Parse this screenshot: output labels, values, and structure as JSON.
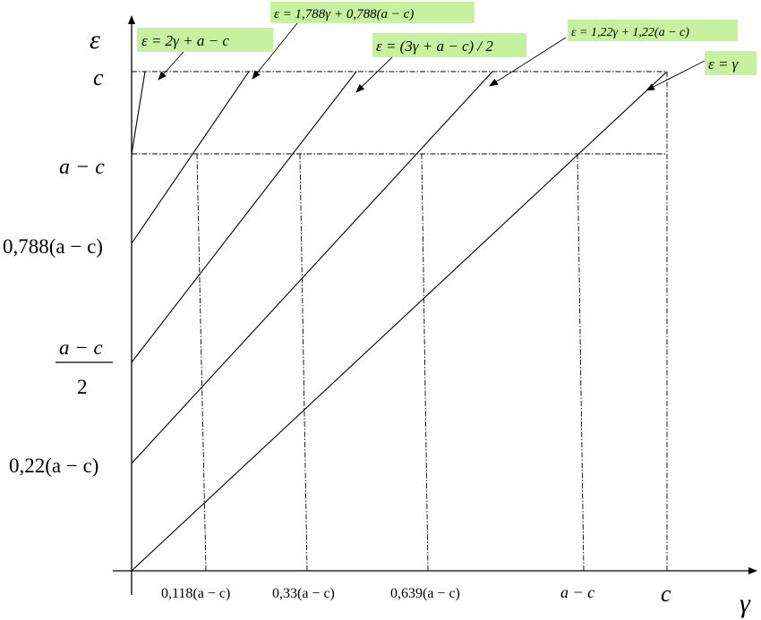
{
  "axes": {
    "x_label": "γ",
    "y_label": "ε",
    "x_ticks": [
      "0,118(a − c)",
      "0,33(a − c)",
      "0,639(a − c)",
      "a − c",
      "c"
    ],
    "y_ticks": [
      "c",
      "a − c",
      "0,788(a − c)",
      "0,22(a − c)"
    ],
    "y_tick_fraction": {
      "numerator": "a − c",
      "denominator": "2"
    }
  },
  "equations": [
    {
      "id": "eq1",
      "text": "ε = 2γ + a − c"
    },
    {
      "id": "eq2",
      "text": "ε = 1,788γ + 0,788(a − c)"
    },
    {
      "id": "eq3",
      "text": "ε = (3γ + a − c) / 2"
    },
    {
      "id": "eq4",
      "text": "ε = 1,22γ + 1,22(a − c)"
    },
    {
      "id": "eq5",
      "text": "ε = γ"
    }
  ],
  "colors": {
    "label_highlight": "#c6f2a0",
    "ink": "#000000"
  }
}
